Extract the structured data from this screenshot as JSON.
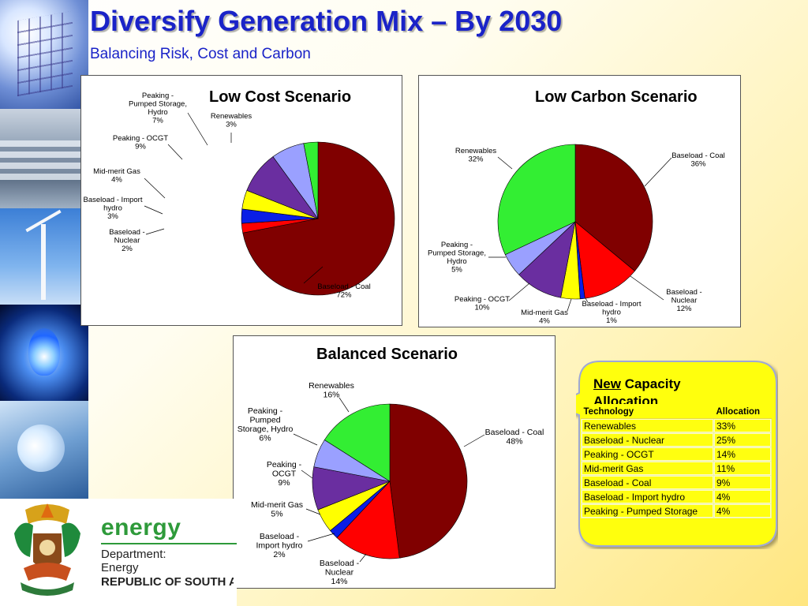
{
  "slide": {
    "title": "Diversify Generation Mix – By 2030",
    "subtitle": "Balancing Risk, Cost and Carbon"
  },
  "colors": {
    "title_text": "#1a23c8",
    "baseload_coal": "#800000",
    "baseload_nuclear": "#ff0000",
    "baseload_import_hydro": "#0a1ee6",
    "mid_merit_gas": "#ffff00",
    "peaking_ocgt": "#6a2ea0",
    "peaking_pumped_storage": "#9aa0ff",
    "renewables": "#33ee33",
    "callout_fill": "#ffff10",
    "logo_green": "#2e9a3a"
  },
  "chart_data": [
    {
      "type": "pie",
      "title": "Low Cost Scenario",
      "unit": "%",
      "slices": [
        {
          "label": "Baseload - Coal",
          "value": 72
        },
        {
          "label": "Baseload - Nuclear",
          "value": 2
        },
        {
          "label": "Baseload - Import hydro",
          "value": 3
        },
        {
          "label": "Mid-merit Gas",
          "value": 4
        },
        {
          "label": "Peaking - OCGT",
          "value": 9
        },
        {
          "label": "Peaking - Pumped Storage, Hydro",
          "value": 7
        },
        {
          "label": "Renewables",
          "value": 3
        }
      ]
    },
    {
      "type": "pie",
      "title": "Low Carbon Scenario",
      "unit": "%",
      "slices": [
        {
          "label": "Baseload - Coal",
          "value": 36
        },
        {
          "label": "Baseload - Nuclear",
          "value": 12
        },
        {
          "label": "Baseload - Import hydro",
          "value": 1
        },
        {
          "label": "Mid-merit Gas",
          "value": 4
        },
        {
          "label": "Peaking - OCGT",
          "value": 10
        },
        {
          "label": "Peaking - Pumped Storage, Hydro",
          "value": 5
        },
        {
          "label": "Renewables",
          "value": 32
        }
      ]
    },
    {
      "type": "pie",
      "title": "Balanced Scenario",
      "unit": "%",
      "slices": [
        {
          "label": "Baseload - Coal",
          "value": 48
        },
        {
          "label": "Baseload - Nuclear",
          "value": 14
        },
        {
          "label": "Baseload - Import hydro",
          "value": 2
        },
        {
          "label": "Mid-merit Gas",
          "value": 5
        },
        {
          "label": "Peaking - OCGT",
          "value": 9
        },
        {
          "label": "Peaking - Pumped Storage, Hydro",
          "value": 6
        },
        {
          "label": "Renewables",
          "value": 16
        }
      ]
    }
  ],
  "callout": {
    "title_underlined": "New",
    "title_rest": " Capacity Allocation",
    "table": {
      "headers": [
        "Technology",
        "Allocation"
      ],
      "rows": [
        [
          "Renewables",
          "33%"
        ],
        [
          "Baseload - Nuclear",
          "25%"
        ],
        [
          "Peaking - OCGT",
          "14%"
        ],
        [
          "Mid-merit Gas",
          "11%"
        ],
        [
          "Baseload - Coal",
          "9%"
        ],
        [
          "Baseload - Import hydro",
          "4%"
        ],
        [
          "Peaking - Pumped Storage",
          "4%"
        ]
      ]
    }
  },
  "footer": {
    "brand": "energy",
    "department": "Department:",
    "ministry": "Energy",
    "country": "REPUBLIC OF SOUTH AFRICA"
  }
}
